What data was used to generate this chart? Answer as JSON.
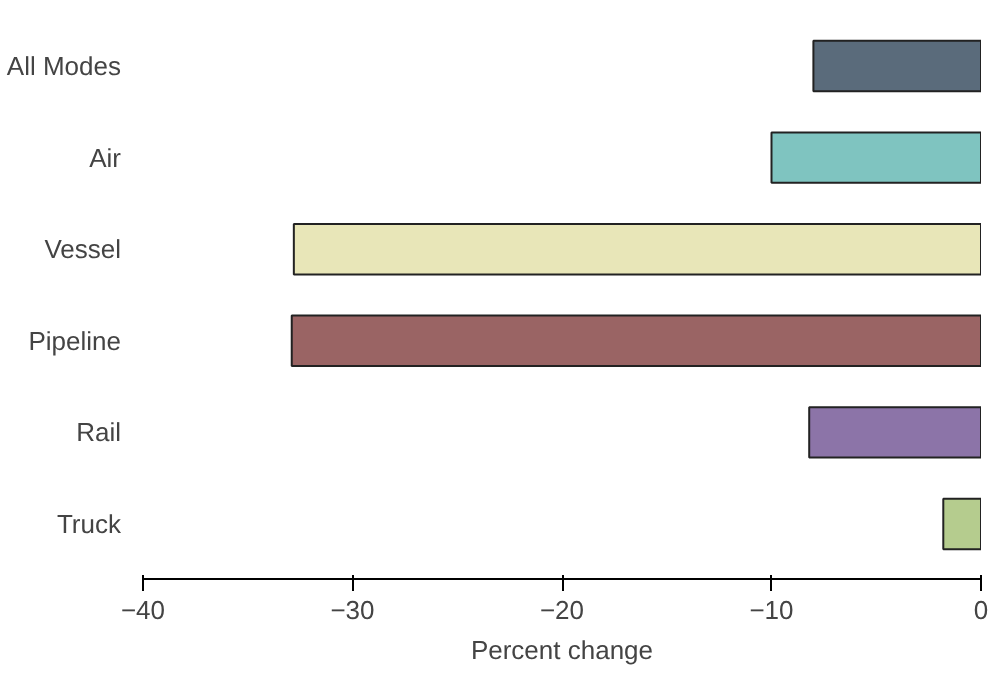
{
  "chart_data": {
    "type": "bar",
    "orientation": "horizontal",
    "xlabel": "Percent change",
    "categories": [
      "All Modes",
      "Air",
      "Vessel",
      "Pipeline",
      "Rail",
      "Truck"
    ],
    "values": [
      -8.0,
      -10.0,
      -32.8,
      -32.9,
      -8.2,
      -1.8
    ],
    "colors": [
      "#5a6b7b",
      "#7fc4c0",
      "#e8e6b8",
      "#9a6464",
      "#8c74a8",
      "#b5cc8e"
    ],
    "xlim": [
      -40,
      0
    ],
    "xticks": [
      -40,
      -30,
      -20,
      -10,
      0
    ]
  }
}
